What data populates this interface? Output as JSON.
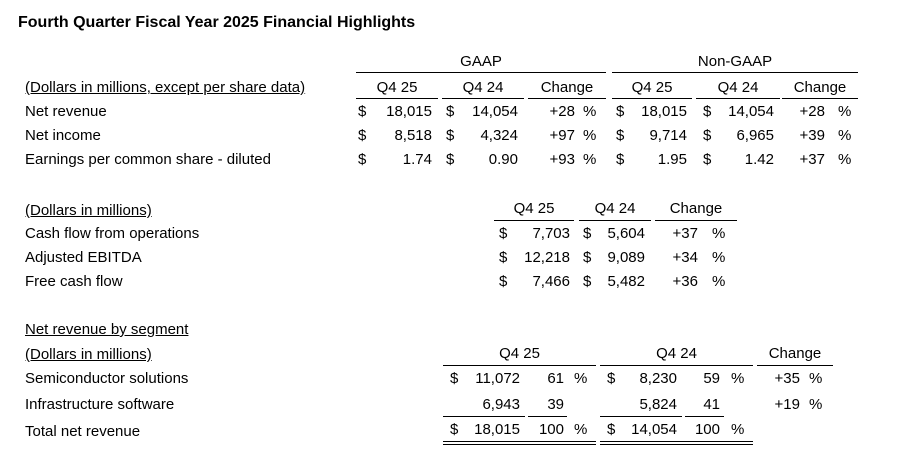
{
  "title": "Fourth Quarter Fiscal Year 2025 Financial Highlights",
  "highlights": {
    "gaap_label": "GAAP",
    "nongaap_label": "Non-GAAP",
    "units_label": "(Dollars in millions, except per share data)",
    "col_headers": [
      "Q4 25",
      "Q4 24",
      "Change",
      "Q4 25",
      "Q4 24",
      "Change"
    ],
    "rows": [
      {
        "label": "Net revenue",
        "g25": "18,015",
        "g24": "14,054",
        "gchg": "+28",
        "n25": "18,015",
        "n24": "14,054",
        "nchg": "+28"
      },
      {
        "label": "Net income",
        "g25": "8,518",
        "g24": "4,324",
        "gchg": "+97",
        "n25": "9,714",
        "n24": "6,965",
        "nchg": "+39"
      },
      {
        "label": "Earnings per common share - diluted",
        "g25": "1.74",
        "g24": "0.90",
        "gchg": "+93",
        "n25": "1.95",
        "n24": "1.42",
        "nchg": "+37"
      }
    ]
  },
  "cash": {
    "units_label": "(Dollars in millions)",
    "col_headers": [
      "Q4 25",
      "Q4 24",
      "Change"
    ],
    "rows": [
      {
        "label": "Cash flow from operations",
        "v25": "7,703",
        "v24": "5,604",
        "chg": "+37"
      },
      {
        "label": "Adjusted EBITDA",
        "v25": "12,218",
        "v24": "9,089",
        "chg": "+34"
      },
      {
        "label": "Free cash flow",
        "v25": "7,466",
        "v24": "5,482",
        "chg": "+36"
      }
    ]
  },
  "segment": {
    "section_label": "Net revenue by segment",
    "units_label": "(Dollars in millions)",
    "col_headers": [
      "Q4 25",
      "Q4 24",
      "Change"
    ],
    "rows": [
      {
        "label": "Semiconductor solutions",
        "v25": "11,072",
        "p25": "61",
        "v24": "8,230",
        "p24": "59",
        "chg": "+35"
      },
      {
        "label": "Infrastructure software",
        "v25": "6,943",
        "p25": "39",
        "v24": "5,824",
        "p24": "41",
        "chg": "+19"
      }
    ],
    "total": {
      "label": "Total net revenue",
      "v25": "18,015",
      "p25": "100",
      "v24": "14,054",
      "p24": "100"
    }
  },
  "symbols": {
    "dollar": "$",
    "percent": "%"
  }
}
